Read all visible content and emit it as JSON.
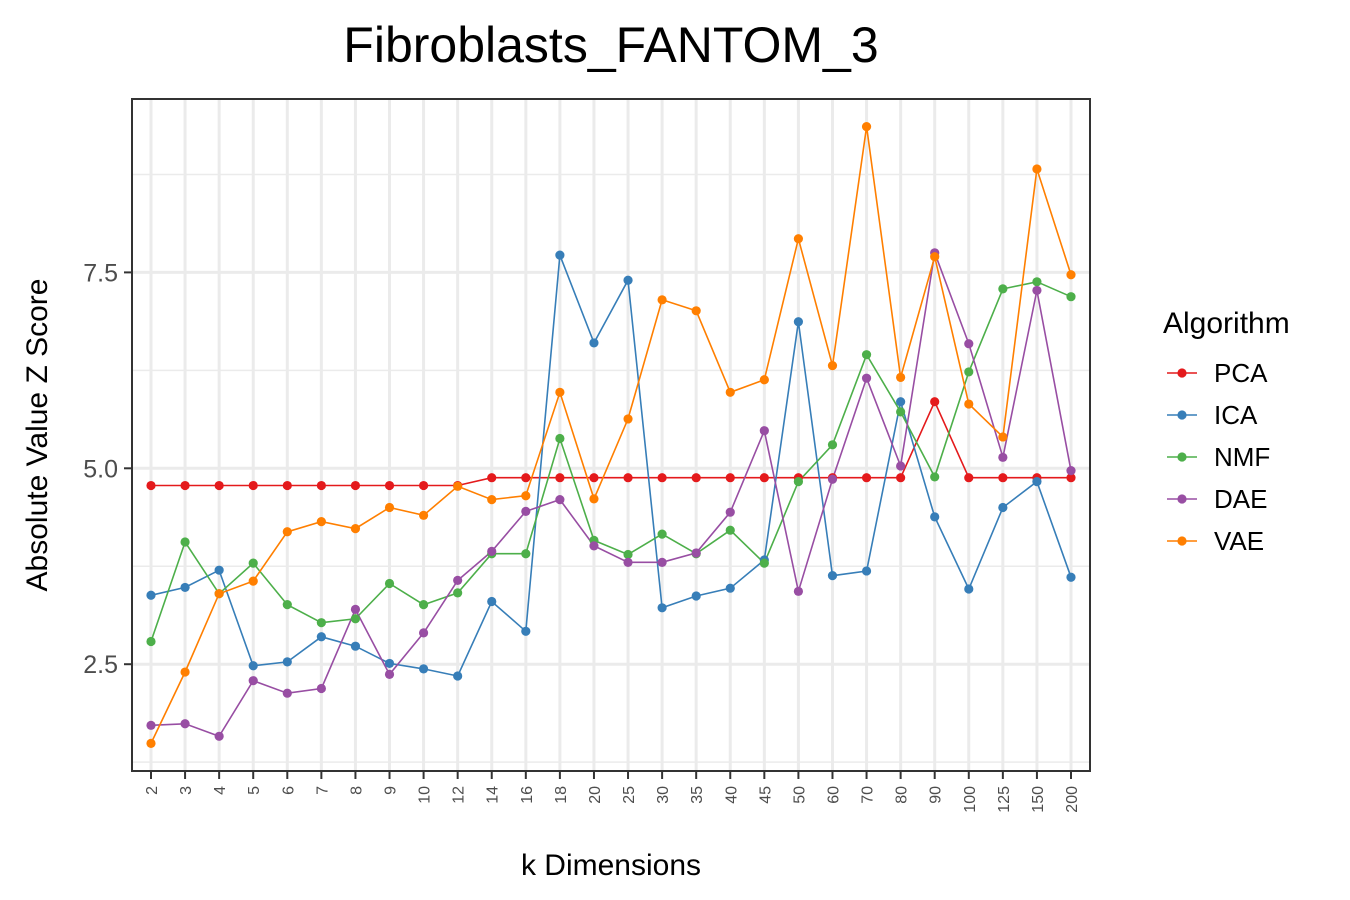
{
  "chart_data": {
    "type": "line",
    "title": "Fibroblasts_FANTOM_3",
    "xlabel": "k Dimensions",
    "ylabel": "Absolute Value Z Score",
    "categories": [
      "2",
      "3",
      "4",
      "5",
      "6",
      "7",
      "8",
      "9",
      "10",
      "12",
      "14",
      "16",
      "18",
      "20",
      "25",
      "30",
      "35",
      "40",
      "45",
      "50",
      "60",
      "70",
      "80",
      "90",
      "100",
      "125",
      "150",
      "200"
    ],
    "ylim": [
      1.15,
      9.7
    ],
    "yticks": [
      2.5,
      5.0,
      7.5
    ],
    "ytick_labels": [
      "2.5",
      "5.0",
      "7.5"
    ],
    "grid": true,
    "legend": {
      "title": "Algorithm",
      "position": "right"
    },
    "series": [
      {
        "name": "PCA",
        "color": "#e41a1c",
        "values": [
          4.78,
          4.78,
          4.78,
          4.78,
          4.78,
          4.78,
          4.78,
          4.78,
          4.78,
          4.78,
          4.88,
          4.88,
          4.88,
          4.88,
          4.88,
          4.88,
          4.88,
          4.88,
          4.88,
          4.88,
          4.88,
          4.88,
          4.88,
          5.85,
          4.88,
          4.88,
          4.88,
          4.88
        ]
      },
      {
        "name": "ICA",
        "color": "#377eb8",
        "values": [
          3.38,
          3.48,
          3.7,
          2.48,
          2.53,
          2.85,
          2.73,
          2.51,
          2.44,
          2.35,
          3.3,
          2.92,
          7.72,
          6.6,
          7.4,
          3.22,
          3.37,
          3.47,
          3.83,
          6.87,
          3.63,
          3.69,
          5.85,
          4.38,
          3.46,
          4.5,
          4.83,
          3.61
        ]
      },
      {
        "name": "NMF",
        "color": "#4daf4a",
        "values": [
          2.79,
          4.06,
          3.4,
          3.79,
          3.26,
          3.03,
          3.08,
          3.53,
          3.26,
          3.41,
          3.91,
          3.91,
          5.38,
          4.08,
          3.9,
          4.16,
          3.91,
          4.21,
          3.79,
          4.83,
          5.3,
          6.45,
          5.72,
          4.89,
          6.23,
          7.29,
          7.38,
          7.19
        ]
      },
      {
        "name": "DAE",
        "color": "#984ea3",
        "values": [
          1.72,
          1.74,
          1.58,
          2.29,
          2.13,
          2.19,
          3.2,
          2.37,
          2.9,
          3.57,
          3.94,
          4.45,
          4.6,
          4.01,
          3.8,
          3.8,
          3.92,
          4.44,
          5.48,
          3.43,
          4.86,
          6.15,
          5.03,
          7.75,
          6.59,
          5.14,
          7.27,
          4.97
        ]
      },
      {
        "name": "VAE",
        "color": "#ff7f00",
        "values": [
          1.49,
          2.4,
          3.4,
          3.56,
          4.19,
          4.32,
          4.23,
          4.5,
          4.4,
          4.77,
          4.6,
          4.65,
          5.97,
          4.61,
          5.63,
          7.15,
          7.01,
          5.97,
          6.13,
          7.93,
          6.31,
          9.36,
          6.16,
          7.7,
          5.82,
          5.4,
          8.82,
          7.47
        ]
      }
    ]
  }
}
